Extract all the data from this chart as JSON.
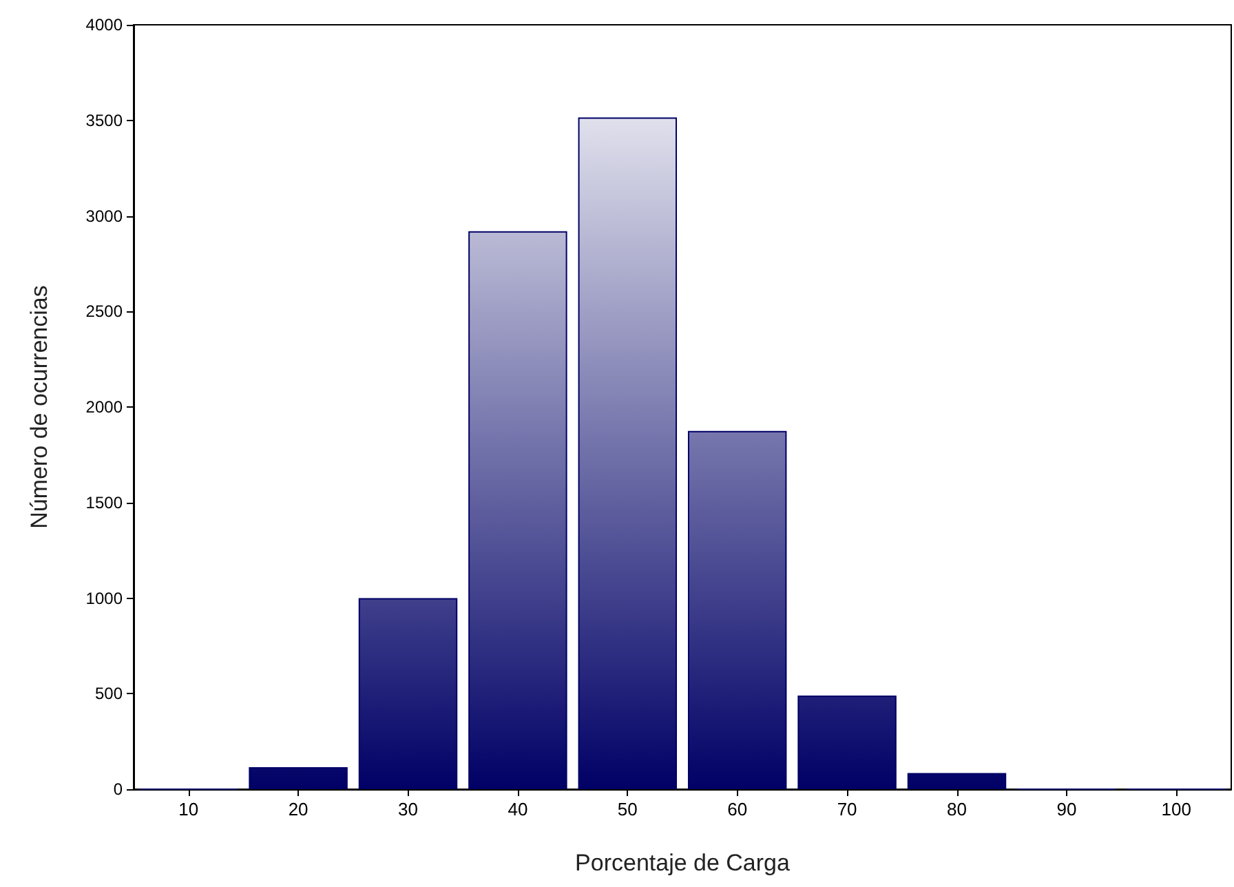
{
  "chart_data": {
    "type": "bar",
    "xlabel": "Porcentaje de Carga",
    "ylabel": "Número de ocurrencias",
    "categories": [
      "10",
      "20",
      "30",
      "40",
      "50",
      "60",
      "70",
      "80",
      "90",
      "100"
    ],
    "values": [
      0,
      115,
      1000,
      2920,
      3515,
      1875,
      490,
      85,
      0,
      0
    ],
    "color": "#000066",
    "ylim": [
      0,
      4000
    ],
    "yticks": [
      0,
      500,
      1000,
      1500,
      2000,
      2500,
      3000,
      3500,
      4000
    ],
    "grid": false
  }
}
